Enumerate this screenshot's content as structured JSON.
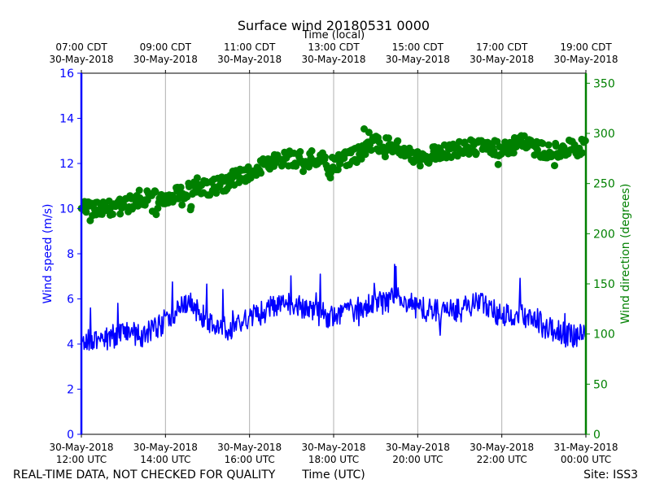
{
  "chart_data": {
    "type": "line",
    "title": "Surface wind 20180531 0000",
    "top_xlabel": "Time (local)",
    "xlabel": "Time (UTC)",
    "ylabel_left": "Wind speed (m/s)",
    "ylabel_right": "Wind direction (degrees)",
    "footer_left": "REAL-TIME DATA, NOT CHECKED FOR QUALITY",
    "footer_right": "Site: ISS3",
    "x_range_hours_utc": [
      12,
      24
    ],
    "ylim_left": [
      0,
      16
    ],
    "ylim_right": [
      0,
      360
    ],
    "left_ticks": [
      "0",
      "2",
      "4",
      "6",
      "8",
      "10",
      "12",
      "14",
      "16"
    ],
    "right_ticks": [
      "0",
      "50",
      "100",
      "150",
      "200",
      "250",
      "300",
      "350"
    ],
    "bottom_ticks": [
      {
        "date": "30-May-2018",
        "time": "12:00 UTC"
      },
      {
        "date": "30-May-2018",
        "time": "14:00 UTC"
      },
      {
        "date": "30-May-2018",
        "time": "16:00 UTC"
      },
      {
        "date": "30-May-2018",
        "time": "18:00 UTC"
      },
      {
        "date": "30-May-2018",
        "time": "20:00 UTC"
      },
      {
        "date": "30-May-2018",
        "time": "22:00 UTC"
      },
      {
        "date": "31-May-2018",
        "time": "00:00 UTC"
      }
    ],
    "top_ticks": [
      {
        "time": "07:00 CDT",
        "date": "30-May-2018"
      },
      {
        "time": "09:00 CDT",
        "date": "30-May-2018"
      },
      {
        "time": "11:00 CDT",
        "date": "30-May-2018"
      },
      {
        "time": "13:00 CDT",
        "date": "30-May-2018"
      },
      {
        "time": "15:00 CDT",
        "date": "30-May-2018"
      },
      {
        "time": "17:00 CDT",
        "date": "30-May-2018"
      },
      {
        "time": "19:00 CDT",
        "date": "30-May-2018"
      }
    ],
    "grid": "vertical",
    "series": [
      {
        "name": "Wind speed",
        "axis": "left",
        "style": "line",
        "color": "#0000ff",
        "x_hours_utc": [
          12.0,
          12.5,
          13.0,
          13.5,
          14.0,
          14.5,
          15.0,
          15.5,
          16.0,
          16.5,
          17.0,
          17.5,
          18.0,
          18.5,
          19.0,
          19.5,
          20.0,
          20.5,
          21.0,
          21.5,
          22.0,
          22.5,
          23.0,
          23.5,
          24.0
        ],
        "values": [
          4.3,
          4.2,
          4.5,
          4.4,
          5.0,
          5.9,
          5.0,
          4.6,
          5.1,
          5.6,
          5.8,
          5.4,
          5.2,
          5.5,
          5.8,
          6.0,
          5.6,
          5.4,
          5.5,
          5.8,
          5.2,
          5.4,
          4.8,
          4.4,
          4.3
        ],
        "noise_amplitude": 0.55
      },
      {
        "name": "Wind direction",
        "axis": "right",
        "style": "scatter",
        "color": "#008000",
        "x_hours_utc": [
          12.0,
          12.5,
          13.0,
          13.5,
          14.0,
          14.5,
          15.0,
          15.5,
          16.0,
          16.5,
          17.0,
          17.5,
          18.0,
          18.5,
          19.0,
          19.5,
          20.0,
          20.5,
          21.0,
          21.5,
          22.0,
          22.5,
          23.0,
          23.5,
          24.0
        ],
        "values": [
          225,
          224,
          228,
          236,
          238,
          242,
          246,
          250,
          262,
          272,
          275,
          276,
          270,
          278,
          290,
          286,
          275,
          280,
          284,
          288,
          285,
          290,
          283,
          285,
          287
        ],
        "noise_amplitude": 8
      }
    ]
  }
}
